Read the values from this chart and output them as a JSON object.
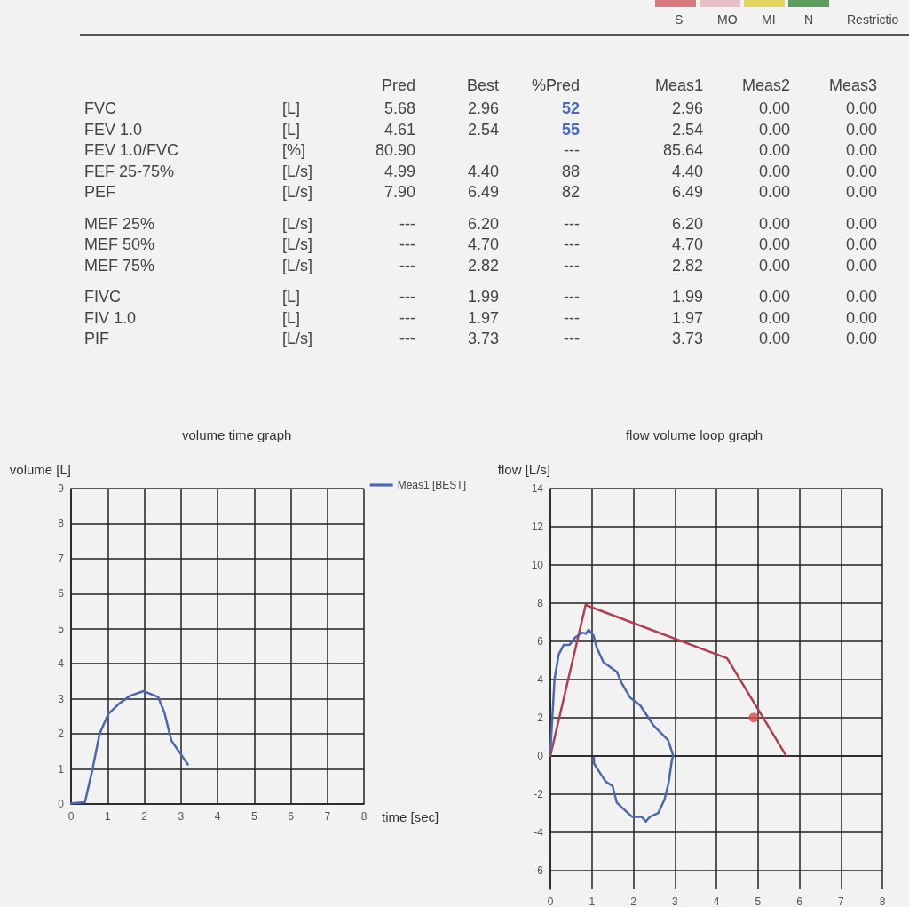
{
  "chart_data": [
    {
      "type": "other",
      "annotations": [
        "S",
        "MO",
        "MI",
        "N",
        "Restrictio",
        "Pred",
        "Best",
        "%Pred",
        "Meas1",
        "Meas2",
        "Meas3",
        "FVC",
        "[L]",
        "5.68",
        "2.96",
        "52",
        "2.96",
        "0.00",
        "0.00",
        "FEV 1.0",
        "[L]",
        "4.61",
        "2.54",
        "55",
        "2.54",
        "0.00",
        "0.00",
        "FEV 1.0/FVC",
        "[%]",
        "80.90",
        "---",
        "85.64",
        "0.00",
        "0.00",
        "FEF 25-75%",
        "[L/s]",
        "4.99",
        "4.40",
        "88",
        "4.40",
        "0.00",
        "0.00",
        "PEF",
        "[L/s]",
        "7.90",
        "6.49",
        "82",
        "6.49",
        "0.00",
        "0.00",
        "MEF 25%",
        "[L/s]",
        "---",
        "6.20",
        "---",
        "6.20",
        "0.00",
        "0.00",
        "MEF 50%",
        "[L/s]",
        "---",
        "4.70",
        "---",
        "4.70",
        "0.00",
        "0.00",
        "MEF 75%",
        "[L/s]",
        "---",
        "2.82",
        "---",
        "2.82",
        "0.00",
        "0.00",
        "FIVC",
        "[L]",
        "---",
        "1.99",
        "---",
        "1.99",
        "0.00",
        "0.00",
        "FIV 1.0",
        "[L]",
        "---",
        "1.97",
        "---",
        "1.97",
        "0.00",
        "0.00",
        "PIF",
        "[L/s]",
        "---",
        "3.73",
        "---",
        "3.73",
        "0.00",
        "0.00"
      ]
    },
    {
      "type": "line",
      "title": "volume time graph",
      "xlabel": "time [sec]",
      "ylabel": "volume [L]",
      "xlim": [
        0,
        8
      ],
      "xticks": [
        0,
        1,
        2,
        3,
        4,
        5,
        6,
        7,
        8
      ],
      "ylim": [
        0,
        9
      ],
      "yticks": [
        0,
        1,
        2,
        3,
        4,
        5,
        6,
        7,
        8,
        9
      ],
      "grid": true,
      "legend": "top right",
      "marker": "none",
      "series": [
        {
          "name": "Meas1 [BEST]",
          "color": "#4a68b0",
          "x": [
            0,
            0.38,
            0.58,
            0.78,
            1.02,
            1.3,
            1.62,
            1.98,
            2.38,
            2.55,
            2.74,
            3.19
          ],
          "values": [
            0.02,
            0.05,
            0.96,
            2.0,
            2.57,
            2.85,
            3.09,
            3.22,
            3.05,
            2.61,
            1.81,
            1.13
          ]
        }
      ]
    },
    {
      "type": "line",
      "title": "flow volume loop graph",
      "ylabel": "flow [L/s]",
      "xlim": [
        0,
        8
      ],
      "xticks": [
        0,
        1,
        2,
        3,
        4,
        5,
        6,
        7,
        8
      ],
      "ylim": [
        -7,
        14
      ],
      "yticks": [
        -6,
        -4,
        -2,
        0,
        2,
        4,
        6,
        8,
        10,
        12,
        14
      ],
      "grid": true,
      "legend": false,
      "series": [
        {
          "color": "#b04050",
          "x": [
            0,
            0.85,
            4.26,
            5.68
          ],
          "values": [
            0,
            7.9,
            5.1,
            0
          ]
        },
        {
          "color": "#4a68b0",
          "x": [
            0,
            0.1,
            0.2,
            0.32,
            0.46,
            0.6,
            0.76,
            0.86,
            0.92,
            1.04,
            1.12,
            1.28,
            1.6,
            1.72,
            1.92,
            2.16,
            2.48,
            2.84,
            2.9,
            2.96,
            2.93,
            2.85,
            2.75,
            2.6,
            2.4,
            2.3,
            2.2,
            1.97,
            1.77,
            1.6,
            1.5,
            1.33,
            1.18,
            1.05,
            1.05
          ],
          "values": [
            0.2,
            4.0,
            5.3,
            5.8,
            5.8,
            6.2,
            6.45,
            6.4,
            6.6,
            6.3,
            5.65,
            4.9,
            4.4,
            3.8,
            3.05,
            2.65,
            1.6,
            0.8,
            0.4,
            0,
            -0.2,
            -1.4,
            -2.3,
            -3.0,
            -3.2,
            -3.45,
            -3.2,
            -3.2,
            -2.8,
            -2.45,
            -1.6,
            -1.35,
            -0.85,
            -0.4,
            -0.1
          ]
        },
        {
          "type": "scatter",
          "marker": "circle",
          "color": "#e04848",
          "x": [
            4.9
          ],
          "values": [
            2.0
          ]
        }
      ]
    }
  ]
}
